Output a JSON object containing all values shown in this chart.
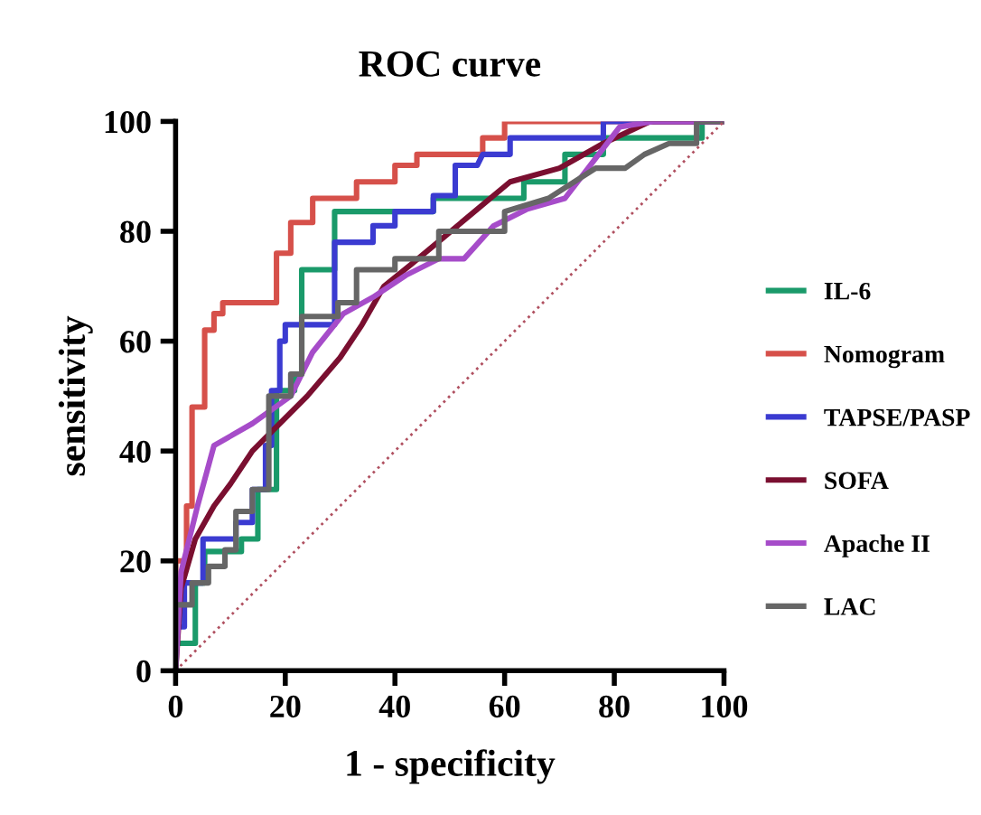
{
  "chart_data": {
    "type": "line",
    "title": "ROC curve",
    "xlabel": "1 - specificity",
    "ylabel": "sensitivity",
    "xlim": [
      0,
      100
    ],
    "ylim": [
      0,
      100
    ],
    "xticks": [
      0,
      20,
      40,
      60,
      80,
      100
    ],
    "yticks": [
      0,
      20,
      40,
      60,
      80,
      100
    ],
    "grid": false,
    "legend": "right",
    "marker": "none",
    "line_style": "solid",
    "series": [
      {
        "name": "IL-6",
        "color": "#1a9a6a",
        "x": [
          0,
          0,
          3.6,
          3.6,
          5.3,
          5.3,
          12,
          12,
          15,
          15,
          18.4,
          18.4,
          21.7,
          21.7,
          23,
          23,
          29,
          29,
          47,
          47,
          63.5,
          63.5,
          71,
          71,
          78,
          78,
          96,
          96,
          100
        ],
        "values": [
          0,
          5,
          5,
          16,
          16,
          21.7,
          21.7,
          24,
          24,
          33,
          33,
          51,
          51,
          54,
          54,
          73,
          73,
          83.6,
          83.6,
          86,
          86,
          89,
          89,
          94,
          94,
          97,
          97,
          100,
          100
        ]
      },
      {
        "name": "Nomogram",
        "color": "#d6504a",
        "x": [
          0,
          0,
          2,
          2,
          3,
          3,
          5.3,
          5.3,
          7,
          7,
          8.6,
          8.6,
          18.4,
          18.4,
          21,
          21,
          25,
          25,
          33,
          33,
          40,
          40,
          44,
          44,
          56,
          56,
          60,
          60,
          100
        ],
        "values": [
          0,
          20,
          20,
          30,
          30,
          48,
          48,
          62,
          62,
          65,
          65,
          67,
          67,
          76,
          76,
          81.6,
          81.6,
          86,
          86,
          89,
          89,
          92,
          92,
          94,
          94,
          97,
          97,
          100,
          100
        ]
      },
      {
        "name": "TAPSE/PASP",
        "color": "#3b3bd1",
        "x": [
          0,
          0,
          1.6,
          1.6,
          5,
          5,
          11,
          11,
          14,
          14,
          16.4,
          16.4,
          17.5,
          17.5,
          19,
          19,
          20,
          20,
          29,
          29,
          36,
          36,
          40,
          40,
          47,
          47,
          51,
          51,
          55,
          56,
          61,
          61,
          78,
          78,
          100
        ],
        "values": [
          0,
          8,
          8,
          16,
          16,
          24,
          24,
          27,
          27,
          33,
          33,
          41,
          41,
          51,
          51,
          60,
          60,
          63,
          63,
          78,
          78,
          81,
          81,
          83.6,
          83.6,
          86.5,
          86.5,
          92,
          92,
          94,
          94,
          97,
          97,
          100,
          100
        ]
      },
      {
        "name": "SOFA",
        "color": "#7a0f30",
        "x": [
          0,
          1,
          3.6,
          7,
          10,
          14,
          19,
          24,
          30,
          34,
          38,
          43,
          49,
          55,
          61,
          70,
          78,
          86.5,
          100
        ],
        "values": [
          0,
          15,
          24,
          30,
          34,
          40,
          45,
          50,
          57,
          63,
          70,
          74,
          79,
          84,
          89,
          91.5,
          96,
          100,
          100
        ]
      },
      {
        "name": "Apache II",
        "color": "#a64cc9",
        "x": [
          0,
          1,
          4,
          7,
          14,
          21,
          25,
          30.6,
          36,
          42,
          48,
          52.6,
          58,
          64,
          71,
          75.6,
          81,
          87,
          100
        ],
        "values": [
          0,
          18,
          30,
          41,
          45,
          50,
          58,
          65,
          68,
          72,
          75,
          75,
          81,
          84,
          86,
          92,
          99,
          100,
          100
        ]
      },
      {
        "name": "LAC",
        "color": "#666666",
        "x": [
          0,
          0,
          3,
          3,
          6,
          6,
          9,
          9,
          11,
          11,
          14,
          14,
          17,
          17,
          21,
          21,
          23,
          23,
          29.6,
          29.6,
          33,
          33,
          40,
          40,
          48,
          48,
          60,
          60,
          68,
          76.6,
          82,
          85.5,
          90,
          95,
          95,
          100
        ],
        "values": [
          0,
          12,
          12,
          16,
          16,
          19,
          19,
          22,
          22,
          29,
          29,
          33,
          33,
          50,
          50,
          54,
          54,
          64.5,
          64.5,
          67,
          67,
          73,
          73,
          75,
          75,
          80,
          80,
          83.6,
          86,
          91.5,
          91.5,
          94,
          96,
          96,
          100,
          100
        ]
      },
      {
        "color": "#b05060",
        "line_style": "dotted",
        "x": [
          0,
          100
        ],
        "values": [
          0,
          100
        ]
      }
    ]
  }
}
